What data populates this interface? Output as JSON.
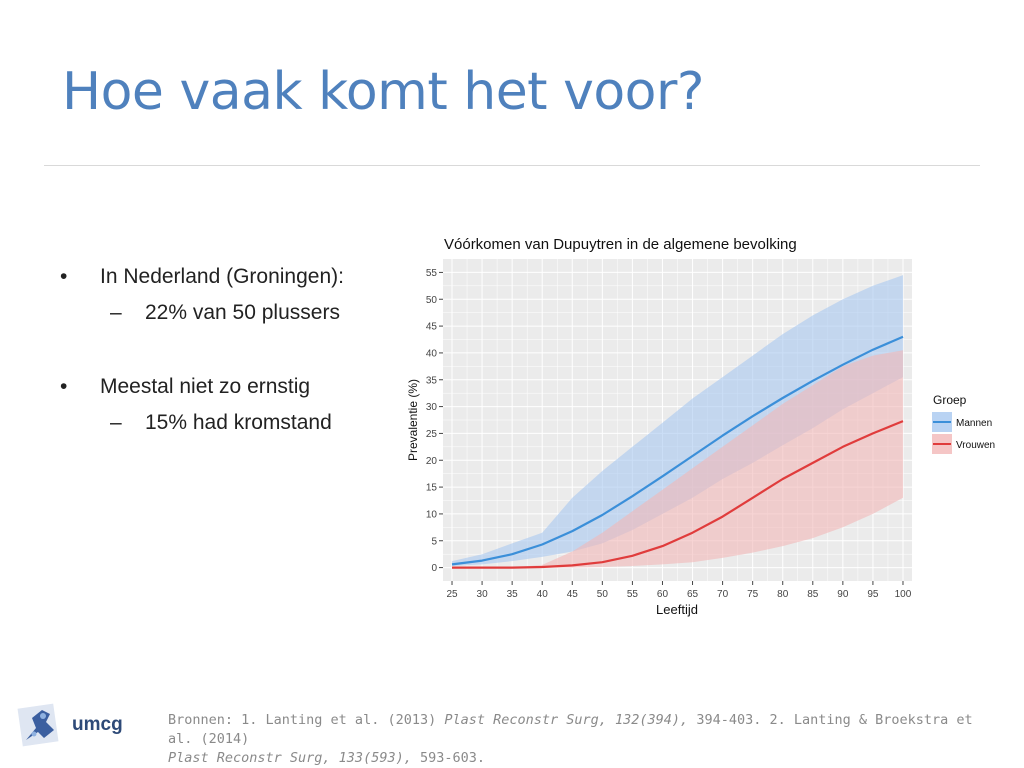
{
  "slide": {
    "title": "Hoe vaak komt het voor?",
    "bullets": [
      {
        "symbol": "•",
        "text": "In Nederland (Groningen):",
        "sub": {
          "symbol": "–",
          "text": "22% van 50 plussers"
        }
      },
      {
        "symbol": "•",
        "text": "Meestal niet zo ernstig",
        "sub": {
          "symbol": "–",
          "text": "15% had kromstand"
        }
      }
    ],
    "footer": {
      "prefix": "Bronnen: 1. Lanting et al. (2013) ",
      "journal1": "Plast Reconstr Surg, 132(394),",
      "mid": " 394-403. 2. Lanting & Broekstra et al. (2014)",
      "journal2": "Plast Reconstr Surg, 133(593),",
      "end": " 593-603."
    },
    "logo_text": "umcg"
  },
  "chart_data": {
    "type": "line",
    "title": "Vóórkomen van Dupuytren in de algemene bevolking",
    "xlabel": "Leeftijd",
    "ylabel": "Prevalentie (%)",
    "x": [
      25,
      30,
      35,
      40,
      45,
      50,
      55,
      60,
      65,
      70,
      75,
      80,
      85,
      90,
      95,
      100
    ],
    "xticks": [
      "25",
      "30",
      "35",
      "40",
      "45",
      "50",
      "55",
      "60",
      "65",
      "70",
      "75",
      "80",
      "85",
      "90",
      "95",
      "100"
    ],
    "yticks": [
      "0",
      "5",
      "10",
      "15",
      "20",
      "25",
      "30",
      "35",
      "40",
      "45",
      "50",
      "55"
    ],
    "xlim": [
      23.5,
      101.5
    ],
    "ylim": [
      -2.5,
      57.5
    ],
    "grid": true,
    "legend": {
      "title": "Groep",
      "position": "right"
    },
    "colors": {
      "panel": "#ebebeb",
      "grid": "#ffffff"
    },
    "series": [
      {
        "name": "Mannen",
        "color": "#3b8fd9",
        "fill": "#a8c8f0",
        "values": [
          0.6,
          1.3,
          2.5,
          4.3,
          6.8,
          9.8,
          13.3,
          17.0,
          20.8,
          24.6,
          28.2,
          31.6,
          34.8,
          37.8,
          40.6,
          43.0
        ],
        "lower": [
          0.3,
          0.6,
          1.2,
          2.0,
          3.0,
          4.5,
          7.0,
          10.0,
          13.0,
          16.5,
          19.5,
          22.8,
          26.0,
          29.5,
          32.5,
          35.5
        ],
        "upper": [
          1.2,
          2.5,
          4.5,
          6.5,
          13.0,
          18.0,
          22.5,
          27.0,
          31.5,
          35.5,
          39.5,
          43.5,
          47.0,
          50.0,
          52.5,
          54.5
        ]
      },
      {
        "name": "Vrouwen",
        "color": "#e03c3c",
        "fill": "#f2b8b8",
        "values": [
          0.0,
          0.0,
          0.0,
          0.1,
          0.4,
          1.0,
          2.2,
          4.0,
          6.5,
          9.5,
          13.0,
          16.5,
          19.5,
          22.5,
          25.0,
          27.3
        ],
        "lower": [
          0.0,
          0.0,
          0.0,
          0.0,
          0.0,
          0.1,
          0.3,
          0.6,
          1.0,
          1.8,
          2.8,
          4.0,
          5.5,
          7.5,
          10.0,
          13.0
        ],
        "upper": [
          0.0,
          0.0,
          0.0,
          0.5,
          3.0,
          6.5,
          10.5,
          14.5,
          18.5,
          22.5,
          26.5,
          30.5,
          34.0,
          37.5,
          39.5,
          40.5
        ]
      }
    ]
  }
}
